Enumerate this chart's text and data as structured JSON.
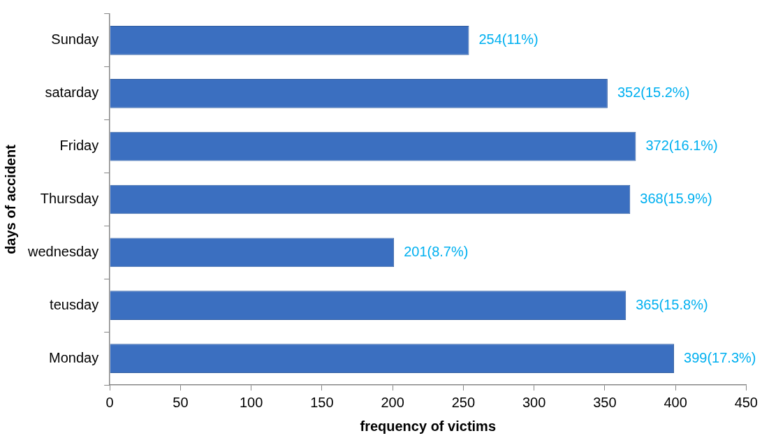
{
  "chart_data": {
    "type": "bar",
    "orientation": "horizontal",
    "xlabel": "frequency of victims",
    "ylabel": "days of accident",
    "categories": [
      "Sunday",
      "satarday",
      "Friday",
      "Thursday",
      "wednesday",
      "teusday",
      "Monday"
    ],
    "values": [
      254,
      352,
      372,
      368,
      201,
      365,
      399
    ],
    "value_labels": [
      "254(11%)",
      "352(15.2%)",
      "372(16.1%)",
      "368(15.9%)",
      "201(8.7%)",
      "365(15.8%)",
      "399(17.3%)"
    ],
    "color": "#3b6fc0",
    "xlim": [
      0,
      450
    ],
    "xticks": [
      0,
      50,
      100,
      150,
      200,
      250,
      300,
      350,
      400,
      450
    ],
    "grid": false,
    "legend": false
  }
}
